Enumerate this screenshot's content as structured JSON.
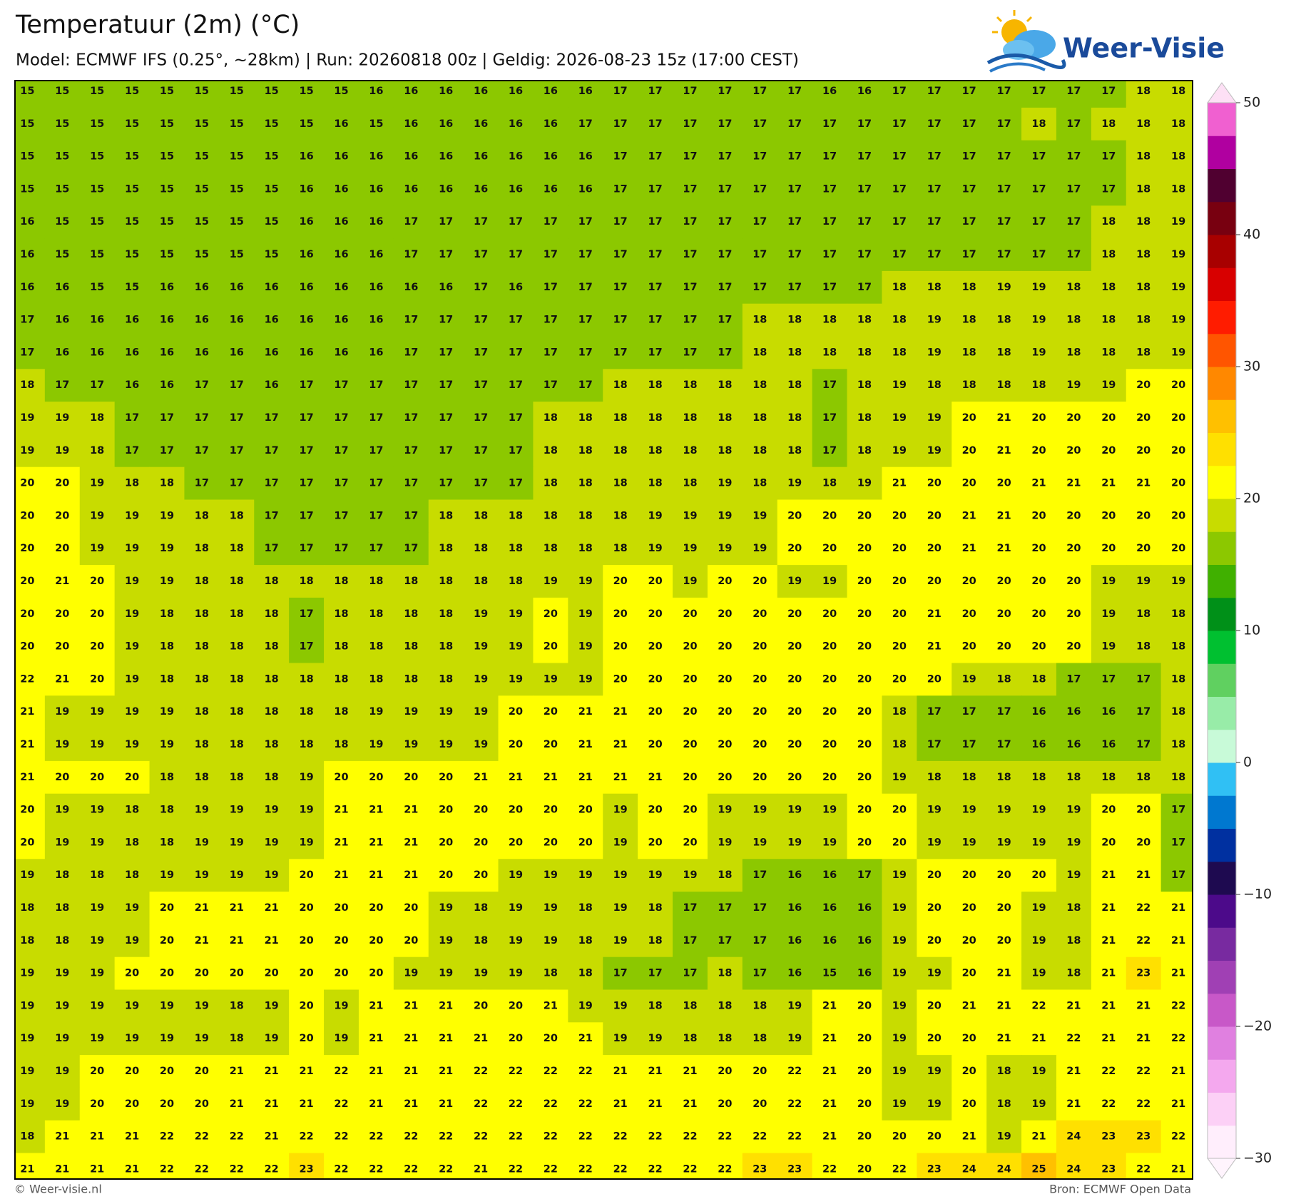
{
  "header": {
    "title": "Temperatuur (2m) (°C)",
    "subtitle": "Model: ECMWF IFS (0.25°, ~28km)  |  Run: 20260818 00z  |  Geldig: 2026-08-23 15z (17:00 CEST)"
  },
  "logo": "Weer-Visie",
  "footer": {
    "left": "© Weer-visie.nl",
    "right": "Bron: ECMWF Open Data"
  },
  "colorbar": {
    "lim": [
      -30,
      50
    ],
    "ticks": [
      50,
      40,
      30,
      20,
      10,
      0,
      {
        "value": -10,
        "label": "−10"
      },
      {
        "value": -20,
        "label": "−20"
      },
      {
        "value": -30,
        "label": "−30"
      }
    ],
    "colors": [
      "#ffeefc",
      "#fcd0f6",
      "#f4a8ee",
      "#e080e0",
      "#c858c8",
      "#a040b4",
      "#782aa0",
      "#4c0a8a",
      "#1e0a50",
      "#0030a0",
      "#0078d0",
      "#30c0f4",
      "#c8fad8",
      "#98eca8",
      "#60d060",
      "#00c030",
      "#009018",
      "#40b000",
      "#8cc800",
      "#c8dc00",
      "#ffff00",
      "#ffe000",
      "#ffc000",
      "#ff8800",
      "#ff5500",
      "#ff1c00",
      "#d80000",
      "#a80000",
      "#780010",
      "#500030",
      "#b000a0",
      "#f060d0"
    ]
  },
  "map": {
    "rows": [
      [
        15,
        15,
        15,
        15,
        15,
        15,
        15,
        15,
        15,
        15,
        16,
        16,
        16,
        16,
        16,
        16,
        16,
        17,
        17,
        17,
        17,
        17,
        17,
        16,
        16,
        17,
        17,
        17,
        17,
        17,
        17,
        17,
        18,
        18
      ],
      [
        15,
        15,
        15,
        15,
        15,
        15,
        15,
        15,
        15,
        16,
        15,
        16,
        16,
        16,
        16,
        16,
        17,
        17,
        17,
        17,
        17,
        17,
        17,
        17,
        17,
        17,
        17,
        17,
        17,
        18,
        17,
        18,
        18,
        18
      ],
      [
        15,
        15,
        15,
        15,
        15,
        15,
        15,
        15,
        16,
        16,
        16,
        16,
        16,
        16,
        16,
        16,
        16,
        17,
        17,
        17,
        17,
        17,
        17,
        17,
        17,
        17,
        17,
        17,
        17,
        17,
        17,
        17,
        18,
        18
      ],
      [
        15,
        15,
        15,
        15,
        15,
        15,
        15,
        15,
        16,
        16,
        16,
        16,
        16,
        16,
        16,
        16,
        16,
        17,
        17,
        17,
        17,
        17,
        17,
        17,
        17,
        17,
        17,
        17,
        17,
        17,
        17,
        17,
        18,
        18
      ],
      [
        16,
        15,
        15,
        15,
        15,
        15,
        15,
        15,
        16,
        16,
        16,
        17,
        17,
        17,
        17,
        17,
        17,
        17,
        17,
        17,
        17,
        17,
        17,
        17,
        17,
        17,
        17,
        17,
        17,
        17,
        17,
        18,
        18,
        19
      ],
      [
        16,
        15,
        15,
        15,
        15,
        15,
        15,
        15,
        16,
        16,
        16,
        17,
        17,
        17,
        17,
        17,
        17,
        17,
        17,
        17,
        17,
        17,
        17,
        17,
        17,
        17,
        17,
        17,
        17,
        17,
        17,
        18,
        18,
        19
      ],
      [
        16,
        16,
        15,
        15,
        16,
        16,
        16,
        16,
        16,
        16,
        16,
        16,
        16,
        17,
        16,
        17,
        17,
        17,
        17,
        17,
        17,
        17,
        17,
        17,
        17,
        18,
        18,
        18,
        19,
        19,
        18,
        18,
        18,
        19
      ],
      [
        17,
        16,
        16,
        16,
        16,
        16,
        16,
        16,
        16,
        16,
        16,
        17,
        17,
        17,
        17,
        17,
        17,
        17,
        17,
        17,
        17,
        18,
        18,
        18,
        18,
        18,
        19,
        18,
        18,
        19,
        18,
        18,
        18,
        19
      ],
      [
        17,
        16,
        16,
        16,
        16,
        16,
        16,
        16,
        16,
        16,
        16,
        17,
        17,
        17,
        17,
        17,
        17,
        17,
        17,
        17,
        17,
        18,
        18,
        18,
        18,
        18,
        19,
        18,
        18,
        19,
        18,
        18,
        18,
        19
      ],
      [
        18,
        17,
        17,
        16,
        16,
        17,
        17,
        16,
        17,
        17,
        17,
        17,
        17,
        17,
        17,
        17,
        17,
        18,
        18,
        18,
        18,
        18,
        18,
        17,
        18,
        19,
        18,
        18,
        18,
        18,
        19,
        19,
        20,
        20
      ],
      [
        19,
        19,
        18,
        17,
        17,
        17,
        17,
        17,
        17,
        17,
        17,
        17,
        17,
        17,
        17,
        18,
        18,
        18,
        18,
        18,
        18,
        18,
        18,
        17,
        18,
        19,
        19,
        20,
        21,
        20,
        20,
        20,
        20,
        20
      ],
      [
        19,
        19,
        18,
        17,
        17,
        17,
        17,
        17,
        17,
        17,
        17,
        17,
        17,
        17,
        17,
        18,
        18,
        18,
        18,
        18,
        18,
        18,
        18,
        17,
        18,
        19,
        19,
        20,
        21,
        20,
        20,
        20,
        20,
        20
      ],
      [
        20,
        20,
        19,
        18,
        18,
        17,
        17,
        17,
        17,
        17,
        17,
        17,
        17,
        17,
        17,
        18,
        18,
        18,
        18,
        18,
        19,
        18,
        19,
        18,
        19,
        21,
        20,
        20,
        20,
        21,
        21,
        21,
        21,
        20
      ],
      [
        20,
        20,
        19,
        19,
        19,
        18,
        18,
        17,
        17,
        17,
        17,
        17,
        18,
        18,
        18,
        18,
        18,
        18,
        19,
        19,
        19,
        19,
        20,
        20,
        20,
        20,
        20,
        21,
        21,
        20,
        20,
        20,
        20,
        20
      ],
      [
        20,
        20,
        19,
        19,
        19,
        18,
        18,
        17,
        17,
        17,
        17,
        17,
        18,
        18,
        18,
        18,
        18,
        18,
        19,
        19,
        19,
        19,
        20,
        20,
        20,
        20,
        20,
        21,
        21,
        20,
        20,
        20,
        20,
        20
      ],
      [
        20,
        21,
        20,
        19,
        19,
        18,
        18,
        18,
        18,
        18,
        18,
        18,
        18,
        18,
        18,
        19,
        19,
        20,
        20,
        19,
        20,
        20,
        19,
        19,
        20,
        20,
        20,
        20,
        20,
        20,
        20,
        19,
        19,
        19
      ],
      [
        20,
        20,
        20,
        19,
        18,
        18,
        18,
        18,
        17,
        18,
        18,
        18,
        18,
        19,
        19,
        20,
        19,
        20,
        20,
        20,
        20,
        20,
        20,
        20,
        20,
        20,
        21,
        20,
        20,
        20,
        20,
        19,
        18,
        18
      ],
      [
        20,
        20,
        20,
        19,
        18,
        18,
        18,
        18,
        17,
        18,
        18,
        18,
        18,
        19,
        19,
        20,
        19,
        20,
        20,
        20,
        20,
        20,
        20,
        20,
        20,
        20,
        21,
        20,
        20,
        20,
        20,
        19,
        18,
        18
      ],
      [
        22,
        21,
        20,
        19,
        18,
        18,
        18,
        18,
        18,
        18,
        18,
        18,
        18,
        19,
        19,
        19,
        19,
        20,
        20,
        20,
        20,
        20,
        20,
        20,
        20,
        20,
        20,
        19,
        18,
        18,
        17,
        17,
        17,
        18
      ],
      [
        21,
        19,
        19,
        19,
        19,
        18,
        18,
        18,
        18,
        18,
        19,
        19,
        19,
        19,
        20,
        20,
        21,
        21,
        20,
        20,
        20,
        20,
        20,
        20,
        20,
        18,
        17,
        17,
        17,
        16,
        16,
        16,
        17,
        18
      ],
      [
        21,
        19,
        19,
        19,
        19,
        18,
        18,
        18,
        18,
        18,
        19,
        19,
        19,
        19,
        20,
        20,
        21,
        21,
        20,
        20,
        20,
        20,
        20,
        20,
        20,
        18,
        17,
        17,
        17,
        16,
        16,
        16,
        17,
        18
      ],
      [
        21,
        20,
        20,
        20,
        18,
        18,
        18,
        18,
        19,
        20,
        20,
        20,
        20,
        21,
        21,
        21,
        21,
        21,
        21,
        20,
        20,
        20,
        20,
        20,
        20,
        19,
        18,
        18,
        18,
        18,
        18,
        18,
        18,
        18
      ],
      [
        20,
        19,
        19,
        18,
        18,
        19,
        19,
        19,
        19,
        21,
        21,
        21,
        20,
        20,
        20,
        20,
        20,
        19,
        20,
        20,
        19,
        19,
        19,
        19,
        20,
        20,
        19,
        19,
        19,
        19,
        19,
        20,
        20,
        17
      ],
      [
        20,
        19,
        19,
        18,
        18,
        19,
        19,
        19,
        19,
        21,
        21,
        21,
        20,
        20,
        20,
        20,
        20,
        19,
        20,
        20,
        19,
        19,
        19,
        19,
        20,
        20,
        19,
        19,
        19,
        19,
        19,
        20,
        20,
        17
      ],
      [
        19,
        18,
        18,
        18,
        19,
        19,
        19,
        19,
        20,
        21,
        21,
        21,
        20,
        20,
        19,
        19,
        19,
        19,
        19,
        19,
        18,
        17,
        16,
        16,
        17,
        19,
        20,
        20,
        20,
        20,
        19,
        21,
        21,
        17
      ],
      [
        18,
        18,
        19,
        19,
        20,
        21,
        21,
        21,
        20,
        20,
        20,
        20,
        19,
        18,
        19,
        19,
        18,
        19,
        18,
        17,
        17,
        17,
        16,
        16,
        16,
        19,
        20,
        20,
        20,
        19,
        18,
        21,
        22,
        21
      ],
      [
        18,
        18,
        19,
        19,
        20,
        21,
        21,
        21,
        20,
        20,
        20,
        20,
        19,
        18,
        19,
        19,
        18,
        19,
        18,
        17,
        17,
        17,
        16,
        16,
        16,
        19,
        20,
        20,
        20,
        19,
        18,
        21,
        22,
        21
      ],
      [
        19,
        19,
        19,
        20,
        20,
        20,
        20,
        20,
        20,
        20,
        20,
        19,
        19,
        19,
        19,
        18,
        18,
        17,
        17,
        17,
        18,
        17,
        16,
        15,
        16,
        19,
        19,
        20,
        21,
        19,
        18,
        21,
        23,
        21
      ],
      [
        19,
        19,
        19,
        19,
        19,
        19,
        18,
        19,
        20,
        19,
        21,
        21,
        21,
        20,
        20,
        21,
        19,
        19,
        18,
        18,
        18,
        18,
        19,
        21,
        20,
        19,
        20,
        21,
        21,
        22,
        21,
        21,
        21,
        22
      ],
      [
        19,
        19,
        19,
        19,
        19,
        19,
        18,
        19,
        20,
        19,
        21,
        21,
        21,
        21,
        20,
        20,
        21,
        19,
        19,
        18,
        18,
        18,
        19,
        21,
        20,
        19,
        20,
        20,
        21,
        21,
        22,
        21,
        21,
        22
      ],
      [
        19,
        19,
        20,
        20,
        20,
        20,
        21,
        21,
        21,
        22,
        21,
        21,
        21,
        22,
        22,
        22,
        22,
        21,
        21,
        21,
        20,
        20,
        22,
        21,
        20,
        19,
        19,
        20,
        18,
        19,
        21,
        22,
        22,
        21
      ],
      [
        19,
        19,
        20,
        20,
        20,
        20,
        21,
        21,
        21,
        22,
        21,
        21,
        21,
        22,
        22,
        22,
        22,
        21,
        21,
        21,
        20,
        20,
        22,
        21,
        20,
        19,
        19,
        20,
        18,
        19,
        21,
        22,
        22,
        21
      ],
      [
        18,
        21,
        21,
        21,
        22,
        22,
        22,
        21,
        22,
        22,
        22,
        22,
        22,
        22,
        22,
        22,
        22,
        22,
        22,
        22,
        22,
        22,
        22,
        21,
        20,
        20,
        20,
        21,
        19,
        21,
        24,
        23,
        23,
        22
      ],
      [
        21,
        21,
        21,
        21,
        22,
        22,
        22,
        22,
        23,
        22,
        22,
        22,
        22,
        21,
        22,
        22,
        22,
        22,
        22,
        22,
        22,
        23,
        23,
        22,
        20,
        22,
        23,
        24,
        24,
        25,
        24,
        23,
        22,
        21
      ]
    ]
  }
}
